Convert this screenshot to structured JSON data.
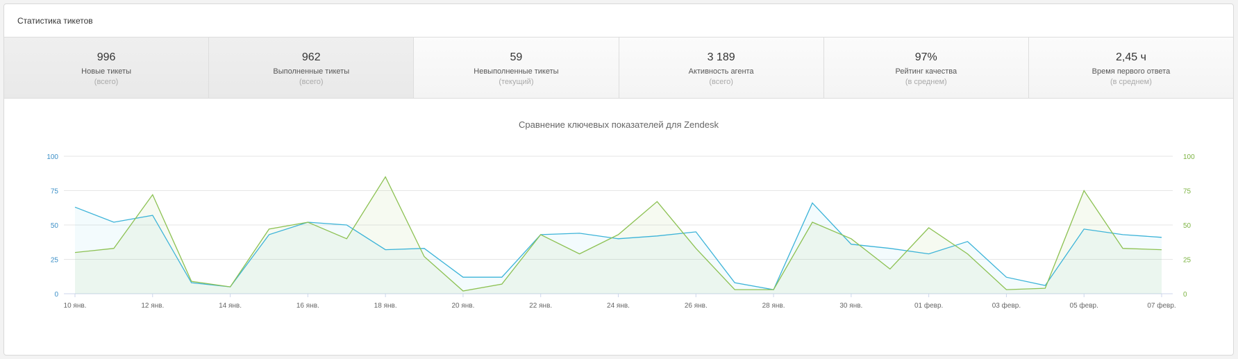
{
  "panel": {
    "title": "Статистика тикетов"
  },
  "stats": [
    {
      "value": "996",
      "label": "Новые тикеты",
      "sub": "(всего)"
    },
    {
      "value": "962",
      "label": "Выполненные тикеты",
      "sub": "(всего)"
    },
    {
      "value": "59",
      "label": "Невыполненные тикеты",
      "sub": "(текущий)"
    },
    {
      "value": "3 189",
      "label": "Активность агента",
      "sub": "(всего)"
    },
    {
      "value": "97%",
      "label": "Рейтинг качества",
      "sub": "(в среднем)"
    },
    {
      "value": "2,45 ч",
      "label": "Время первого ответа",
      "sub": "(в среднем)"
    }
  ],
  "chart_data": {
    "type": "area",
    "title": "Сравнение ключевых показателей для Zendesk",
    "x_tick_labels": [
      "10 янв.",
      "12 янв.",
      "14 янв.",
      "16 янв.",
      "18 янв.",
      "20 янв.",
      "22 янв.",
      "24 янв.",
      "26 янв.",
      "28 янв.",
      "30 янв.",
      "01 февр.",
      "03 февр.",
      "05 февр.",
      "07 февр."
    ],
    "ylim": [
      0,
      100
    ],
    "y_ticks": [
      0,
      25,
      50,
      75,
      100
    ],
    "grid": true,
    "colors": {
      "series_blue": "#3bb3d8",
      "series_green": "#8cc152",
      "axis_left": "#3b8fc7",
      "axis_right": "#7cb342"
    },
    "series": [
      {
        "axis": "left",
        "values": [
          63,
          52,
          57,
          8,
          5,
          43,
          52,
          50,
          32,
          33,
          12,
          12,
          43,
          44,
          40,
          42,
          45,
          8,
          3,
          66,
          36,
          33,
          29,
          38,
          12,
          6,
          47,
          43,
          41
        ]
      },
      {
        "axis": "right",
        "values": [
          30,
          33,
          72,
          9,
          5,
          47,
          52,
          40,
          85,
          27,
          2,
          7,
          43,
          29,
          43,
          67,
          33,
          3,
          3,
          52,
          40,
          18,
          48,
          29,
          3,
          4,
          75,
          33,
          32
        ]
      }
    ]
  }
}
